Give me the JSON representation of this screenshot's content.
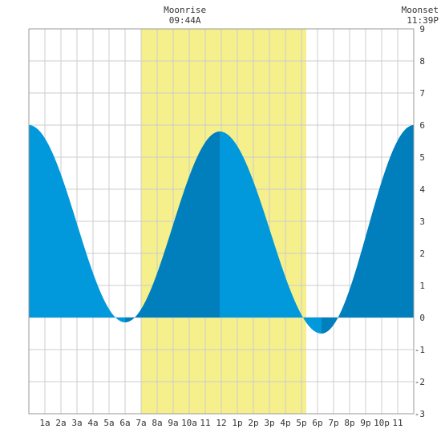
{
  "chart_data": {
    "type": "area",
    "title": "",
    "xlabel": "",
    "ylabel": "",
    "x_range_hours": [
      0,
      24
    ],
    "ylim": [
      -3,
      9
    ],
    "y_ticks": [
      9,
      8,
      7,
      6,
      5,
      4,
      3,
      2,
      1,
      0,
      -1,
      -2,
      -3
    ],
    "x_ticks": [
      {
        "h": 1,
        "label": "1a"
      },
      {
        "h": 2,
        "label": "2a"
      },
      {
        "h": 3,
        "label": "3a"
      },
      {
        "h": 4,
        "label": "4a"
      },
      {
        "h": 5,
        "label": "5a"
      },
      {
        "h": 6,
        "label": "6a"
      },
      {
        "h": 7,
        "label": "7a"
      },
      {
        "h": 8,
        "label": "8a"
      },
      {
        "h": 9,
        "label": "9a"
      },
      {
        "h": 10,
        "label": "10a"
      },
      {
        "h": 11,
        "label": "11"
      },
      {
        "h": 12,
        "label": "12"
      },
      {
        "h": 13,
        "label": "1p"
      },
      {
        "h": 14,
        "label": "2p"
      },
      {
        "h": 15,
        "label": "3p"
      },
      {
        "h": 16,
        "label": "4p"
      },
      {
        "h": 17,
        "label": "5p"
      },
      {
        "h": 18,
        "label": "6p"
      },
      {
        "h": 19,
        "label": "7p"
      },
      {
        "h": 20,
        "label": "8p"
      },
      {
        "h": 21,
        "label": "9p"
      },
      {
        "h": 22,
        "label": "10p"
      },
      {
        "h": 23,
        "label": "11"
      }
    ],
    "tide_extremes": [
      {
        "time_h": 0.0,
        "height": 6.0,
        "type": "high"
      },
      {
        "time_h": 6.0,
        "height": -0.15,
        "type": "low"
      },
      {
        "time_h": 11.9,
        "height": 5.8,
        "type": "high"
      },
      {
        "time_h": 18.25,
        "height": -0.5,
        "type": "low"
      },
      {
        "time_h": 24.0,
        "height": 6.0,
        "type": "high"
      }
    ],
    "daylight": {
      "start_h": 7.0,
      "end_h": 17.3
    },
    "colors": {
      "daylight": "#f5ef8c",
      "falling": "#0199dc",
      "rising": "#017ebc",
      "grid": "#cccccc",
      "background": "#ffffff"
    },
    "moonrise": {
      "label": "Moonrise",
      "time": "09:44A",
      "h": 9.73
    },
    "moonset": {
      "label": "Moonset",
      "time": "11:39P",
      "h": 23.65
    }
  }
}
